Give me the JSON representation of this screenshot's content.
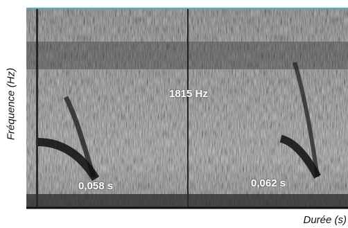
{
  "chart_data": {
    "type": "heatmap",
    "title": "",
    "xlabel": "Durée (s)",
    "ylabel": "Fréquence (Hz)",
    "grid": false,
    "annotations": [
      {
        "id": "freq",
        "text": "1815 Hz"
      },
      {
        "id": "t1",
        "text": "0,058  s"
      },
      {
        "id": "t2",
        "text": "0,062  s"
      }
    ],
    "colors": {
      "background": "#7a7a7a",
      "dark": "#101010",
      "light": "#d8d8d8",
      "top_border": "#4fb3b8",
      "axis": "#111111"
    }
  }
}
